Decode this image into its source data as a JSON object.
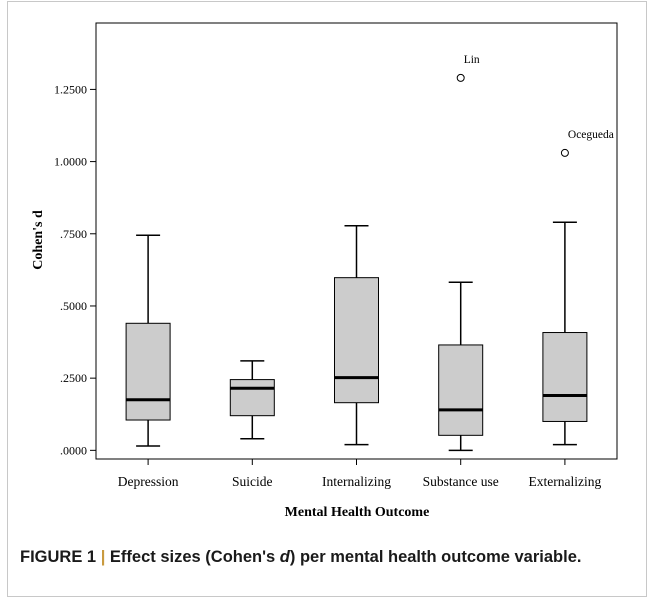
{
  "chart_data": {
    "type": "box",
    "xlabel": "Mental Health Outcome",
    "ylabel": "Cohen's d",
    "ylim": [
      -0.03,
      1.48
    ],
    "yticks": [
      0,
      0.25,
      0.5,
      0.75,
      1.0,
      1.25
    ],
    "ytick_labels": [
      ".0000",
      ".2500",
      ".5000",
      ".7500",
      "1.0000",
      "1.2500"
    ],
    "categories": [
      "Depression",
      "Suicide",
      "Internalizing",
      "Substance use",
      "Externalizing"
    ],
    "boxes": [
      {
        "category": "Depression",
        "whisker_low": 0.015,
        "q1": 0.105,
        "median": 0.175,
        "q3": 0.44,
        "whisker_high": 0.745
      },
      {
        "category": "Suicide",
        "whisker_low": 0.04,
        "q1": 0.12,
        "median": 0.215,
        "q3": 0.245,
        "whisker_high": 0.31
      },
      {
        "category": "Internalizing",
        "whisker_low": 0.02,
        "q1": 0.165,
        "median": 0.252,
        "q3": 0.598,
        "whisker_high": 0.778
      },
      {
        "category": "Substance use",
        "whisker_low": 0.0,
        "q1": 0.052,
        "median": 0.14,
        "q3": 0.365,
        "whisker_high": 0.582
      },
      {
        "category": "Externalizing",
        "whisker_low": 0.02,
        "q1": 0.1,
        "median": 0.19,
        "q3": 0.408,
        "whisker_high": 0.79
      }
    ],
    "outliers": [
      {
        "category": "Substance use",
        "value": 1.29,
        "label": "Lin"
      },
      {
        "category": "Externalizing",
        "value": 1.03,
        "label": "Ocegueda"
      }
    ],
    "box_color": "#cccccc",
    "grid": false
  },
  "caption": {
    "figure_label": "FIGURE 1",
    "separator": " | ",
    "text_before": "Effect sizes (Cohen's ",
    "text_italic": "d",
    "text_after": ") per mental health outcome variable."
  }
}
